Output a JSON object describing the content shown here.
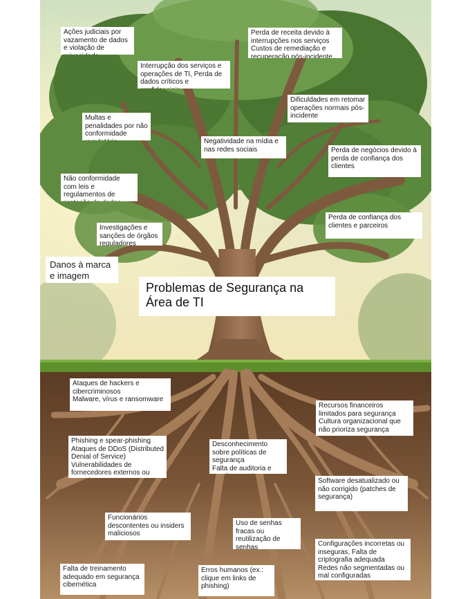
{
  "title": "Problemas de Segurança na Área de TI",
  "branches": [
    "Ações judiciais por vazamento de dados e violação de privacidade",
    "Perda de receita devido à interrupções nos serviços\nCustos de remediação e recuperação pós-incidente",
    "Interrupção dos serviços e operações de TI, Perda de dados críticos e confidenciais",
    "Dificuldades em retomar operações normais pós-incidente",
    "Multas e penalidades por não conformidade regulatória",
    "Negatividade na mídia e nas redes sociais",
    "Perda de negócios devido à perda de confiança dos clientes",
    "Não conformidade com leis e regulamentos de proteção de dados",
    "Perda de confiança dos clientes e parceiros",
    "Investigações e sanções de órgãos reguladores",
    "Danos à marca e imagem pública"
  ],
  "roots": [
    "Ataques de hackers e cibercriminosos\nMalware, vírus e ransomware",
    "Recursos financeiros limitados para segurança\nCultura organizacional que não prioriza segurança",
    "Phishing e spear-phishing\nAtaques de DDoS (Distributed Denial of Service)\nVulnerabilidades de fornecedores externos ou parceiros",
    "Desconhecimento sobre políticas de segurança\nFalta de auditoria e monitoramento",
    "Software desatualizado ou não corrigido (patches de segurança)",
    "Funcionários descontentes ou insiders maliciosos",
    "Uso de senhas fracas ou reutilização de senhas",
    "Configurações incorretas ou inseguras, Falta de criptografia adequada\nRedes não segmentadas ou mal configuradas",
    "Falta de treinamento adequado em segurança cibernética",
    "Erros humanos (ex.: clique em links de phishing)"
  ],
  "colors": {
    "sky": "#d8e6c2",
    "canopy": "#4f7a36",
    "trunk": "#8a6446",
    "grass": "#5d8f2c",
    "soil": "#6b4a30",
    "roots": "#9a7250"
  }
}
